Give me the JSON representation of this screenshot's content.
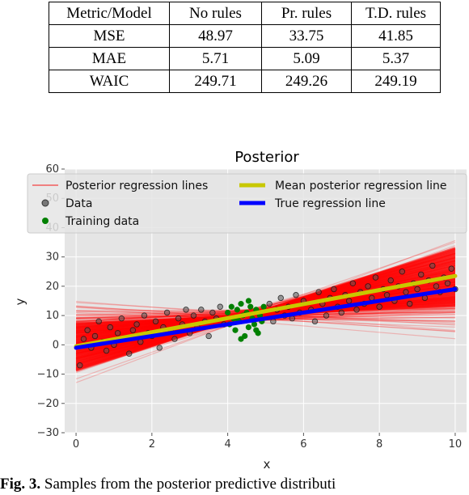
{
  "table": {
    "headers": [
      "Metric/Model",
      "No rules",
      "Pr. rules",
      "T.D. rules"
    ],
    "rows": [
      [
        "MSE",
        "48.97",
        "33.75",
        "41.85"
      ],
      [
        "MAE",
        "5.71",
        "5.09",
        "5.37"
      ],
      [
        "WAIC",
        "249.71",
        "249.26",
        "249.19"
      ]
    ]
  },
  "chart_data": {
    "type": "scatter",
    "title": "Posterior",
    "xlabel": "x",
    "ylabel": "y",
    "xlim": [
      -0.3,
      10.3
    ],
    "ylim": [
      -30,
      60
    ],
    "xticks": [
      "0",
      "2",
      "4",
      "6",
      "8",
      "10"
    ],
    "yticks": [
      "−30",
      "−20",
      "−10",
      "0",
      "10",
      "20",
      "30",
      "40",
      "50",
      "60"
    ],
    "grid": true,
    "legend_placement": "top",
    "legend": [
      {
        "label": "Posterior regression lines",
        "color": "#f08080",
        "kind": "line"
      },
      {
        "label": "Mean posterior regression line",
        "color": "#c8c800",
        "kind": "line"
      },
      {
        "label": "Data",
        "color": "#555555",
        "kind": "marker"
      },
      {
        "label": "True regression line",
        "color": "#0000ff",
        "kind": "line"
      },
      {
        "label": "Training data",
        "color": "#008000",
        "kind": "marker"
      }
    ],
    "series": [
      {
        "name": "Mean posterior regression line",
        "x": [
          0,
          10
        ],
        "y": [
          -0.5,
          23.5
        ]
      },
      {
        "name": "True regression line",
        "x": [
          0,
          10
        ],
        "y": [
          -1,
          19
        ]
      },
      {
        "name": "Posterior regression lines",
        "pivot": [
          4.5,
          10
        ],
        "slope_range": [
          -1.8,
          5.6
        ]
      }
    ],
    "data_points": [
      [
        0.1,
        -7
      ],
      [
        0.2,
        2
      ],
      [
        0.3,
        5
      ],
      [
        0.4,
        -1
      ],
      [
        0.5,
        3
      ],
      [
        0.6,
        8
      ],
      [
        0.7,
        1
      ],
      [
        0.8,
        -2
      ],
      [
        0.9,
        6
      ],
      [
        1.0,
        0
      ],
      [
        1.1,
        4
      ],
      [
        1.2,
        9
      ],
      [
        1.3,
        2
      ],
      [
        1.4,
        -3
      ],
      [
        1.5,
        5
      ],
      [
        1.6,
        7
      ],
      [
        1.7,
        1
      ],
      [
        1.8,
        10
      ],
      [
        1.9,
        4
      ],
      [
        2.0,
        3
      ],
      [
        2.1,
        8
      ],
      [
        2.2,
        -1
      ],
      [
        2.3,
        6
      ],
      [
        2.4,
        11
      ],
      [
        2.5,
        5
      ],
      [
        2.6,
        2
      ],
      [
        2.7,
        9
      ],
      [
        2.8,
        7
      ],
      [
        2.9,
        12
      ],
      [
        3.0,
        4
      ],
      [
        3.1,
        10
      ],
      [
        3.2,
        6
      ],
      [
        3.3,
        12
      ],
      [
        3.4,
        8
      ],
      [
        3.5,
        3
      ],
      [
        3.6,
        11
      ],
      [
        3.7,
        9
      ],
      [
        3.8,
        13
      ],
      [
        3.9,
        7
      ],
      [
        5.1,
        14
      ],
      [
        5.2,
        8
      ],
      [
        5.3,
        12
      ],
      [
        5.4,
        16
      ],
      [
        5.5,
        10
      ],
      [
        5.6,
        13
      ],
      [
        5.7,
        9
      ],
      [
        5.8,
        17
      ],
      [
        5.9,
        11
      ],
      [
        6.0,
        15
      ],
      [
        6.2,
        12
      ],
      [
        6.3,
        8
      ],
      [
        6.4,
        18
      ],
      [
        6.5,
        14
      ],
      [
        6.6,
        10
      ],
      [
        6.7,
        16
      ],
      [
        6.8,
        19
      ],
      [
        6.9,
        13
      ],
      [
        7.0,
        11
      ],
      [
        7.1,
        17
      ],
      [
        7.2,
        15
      ],
      [
        7.3,
        21
      ],
      [
        7.4,
        12
      ],
      [
        7.5,
        18
      ],
      [
        7.6,
        14
      ],
      [
        7.7,
        20
      ],
      [
        7.8,
        16
      ],
      [
        7.9,
        23
      ],
      [
        8.0,
        13
      ],
      [
        8.1,
        19
      ],
      [
        8.2,
        17
      ],
      [
        8.3,
        22
      ],
      [
        8.4,
        15
      ],
      [
        8.5,
        20
      ],
      [
        8.6,
        25
      ],
      [
        8.7,
        18
      ],
      [
        8.8,
        14
      ],
      [
        8.9,
        21
      ],
      [
        9.0,
        19
      ],
      [
        9.1,
        24
      ],
      [
        9.2,
        16
      ],
      [
        9.3,
        22
      ],
      [
        9.4,
        27
      ],
      [
        9.5,
        20
      ],
      [
        9.6,
        18
      ],
      [
        9.7,
        23
      ],
      [
        9.8,
        21
      ],
      [
        9.9,
        26
      ],
      [
        10.0,
        19
      ]
    ],
    "training_points": [
      [
        4.0,
        11
      ],
      [
        4.05,
        7
      ],
      [
        4.1,
        13
      ],
      [
        4.15,
        9
      ],
      [
        4.2,
        5
      ],
      [
        4.25,
        12
      ],
      [
        4.3,
        8
      ],
      [
        4.35,
        14
      ],
      [
        4.4,
        10
      ],
      [
        4.45,
        3
      ],
      [
        4.5,
        11
      ],
      [
        4.55,
        6
      ],
      [
        4.6,
        13
      ],
      [
        4.65,
        9
      ],
      [
        4.7,
        7
      ],
      [
        4.75,
        12
      ],
      [
        4.8,
        4
      ],
      [
        4.85,
        10
      ],
      [
        4.9,
        8
      ],
      [
        4.95,
        13
      ],
      [
        4.35,
        2
      ],
      [
        4.55,
        15
      ],
      [
        4.75,
        5
      ],
      [
        4.25,
        9
      ]
    ]
  },
  "caption": {
    "label": "Fig. 3.",
    "text": "Samples from the posterior predictive distributi"
  }
}
